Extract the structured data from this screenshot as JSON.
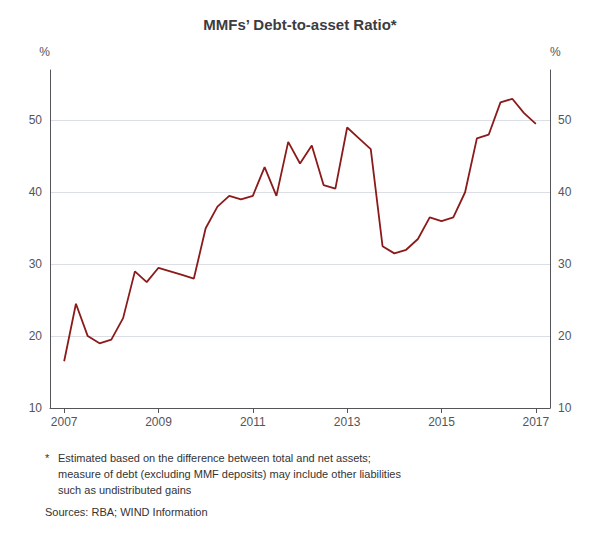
{
  "chart_data": {
    "type": "line",
    "title": "MMFs’ Debt-to-asset Ratio*",
    "ylabel": "%",
    "y2label": "%",
    "annotations": [
      "*",
      "Estimated based on the difference between total and net assets;",
      "measure of debt (excluding MMF deposits) may include other liabilities",
      "such as undistributed gains",
      "Sources: RBA; WIND Information"
    ],
    "color": "#8B1A1A",
    "grid": true,
    "xlim": [
      2006.7,
      2017.3
    ],
    "xticks": [
      2007,
      2009,
      2011,
      2013,
      2015,
      2017
    ],
    "ylim": [
      10,
      57
    ],
    "yticks": [
      10,
      20,
      30,
      40,
      50
    ],
    "y2lim": [
      10,
      57
    ],
    "y2ticks": [
      10,
      20,
      30,
      40,
      50
    ],
    "x": [
      2007.0,
      2007.25,
      2007.5,
      2007.75,
      2008.0,
      2008.25,
      2008.5,
      2008.75,
      2009.0,
      2009.25,
      2009.5,
      2009.75,
      2010.0,
      2010.25,
      2010.5,
      2010.75,
      2011.0,
      2011.25,
      2011.5,
      2011.75,
      2012.0,
      2012.25,
      2012.5,
      2012.75,
      2013.0,
      2013.25,
      2013.5,
      2013.75,
      2014.0,
      2014.25,
      2014.5,
      2014.75,
      2015.0,
      2015.25,
      2015.5,
      2015.75,
      2016.0,
      2016.25,
      2016.5,
      2016.75,
      2017.0
    ],
    "values": [
      16.5,
      24.5,
      20.0,
      19.0,
      19.5,
      22.5,
      29.0,
      27.5,
      29.5,
      29.0,
      28.5,
      28.0,
      35.0,
      38.0,
      39.5,
      39.0,
      39.5,
      43.5,
      39.5,
      47.0,
      44.0,
      46.5,
      41.0,
      40.5,
      49.0,
      47.5,
      46.0,
      32.5,
      31.5,
      32.0,
      33.5,
      36.5,
      36.0,
      36.5,
      40.0,
      47.5,
      48.0,
      52.5,
      53.0,
      51.0,
      49.5
    ]
  }
}
